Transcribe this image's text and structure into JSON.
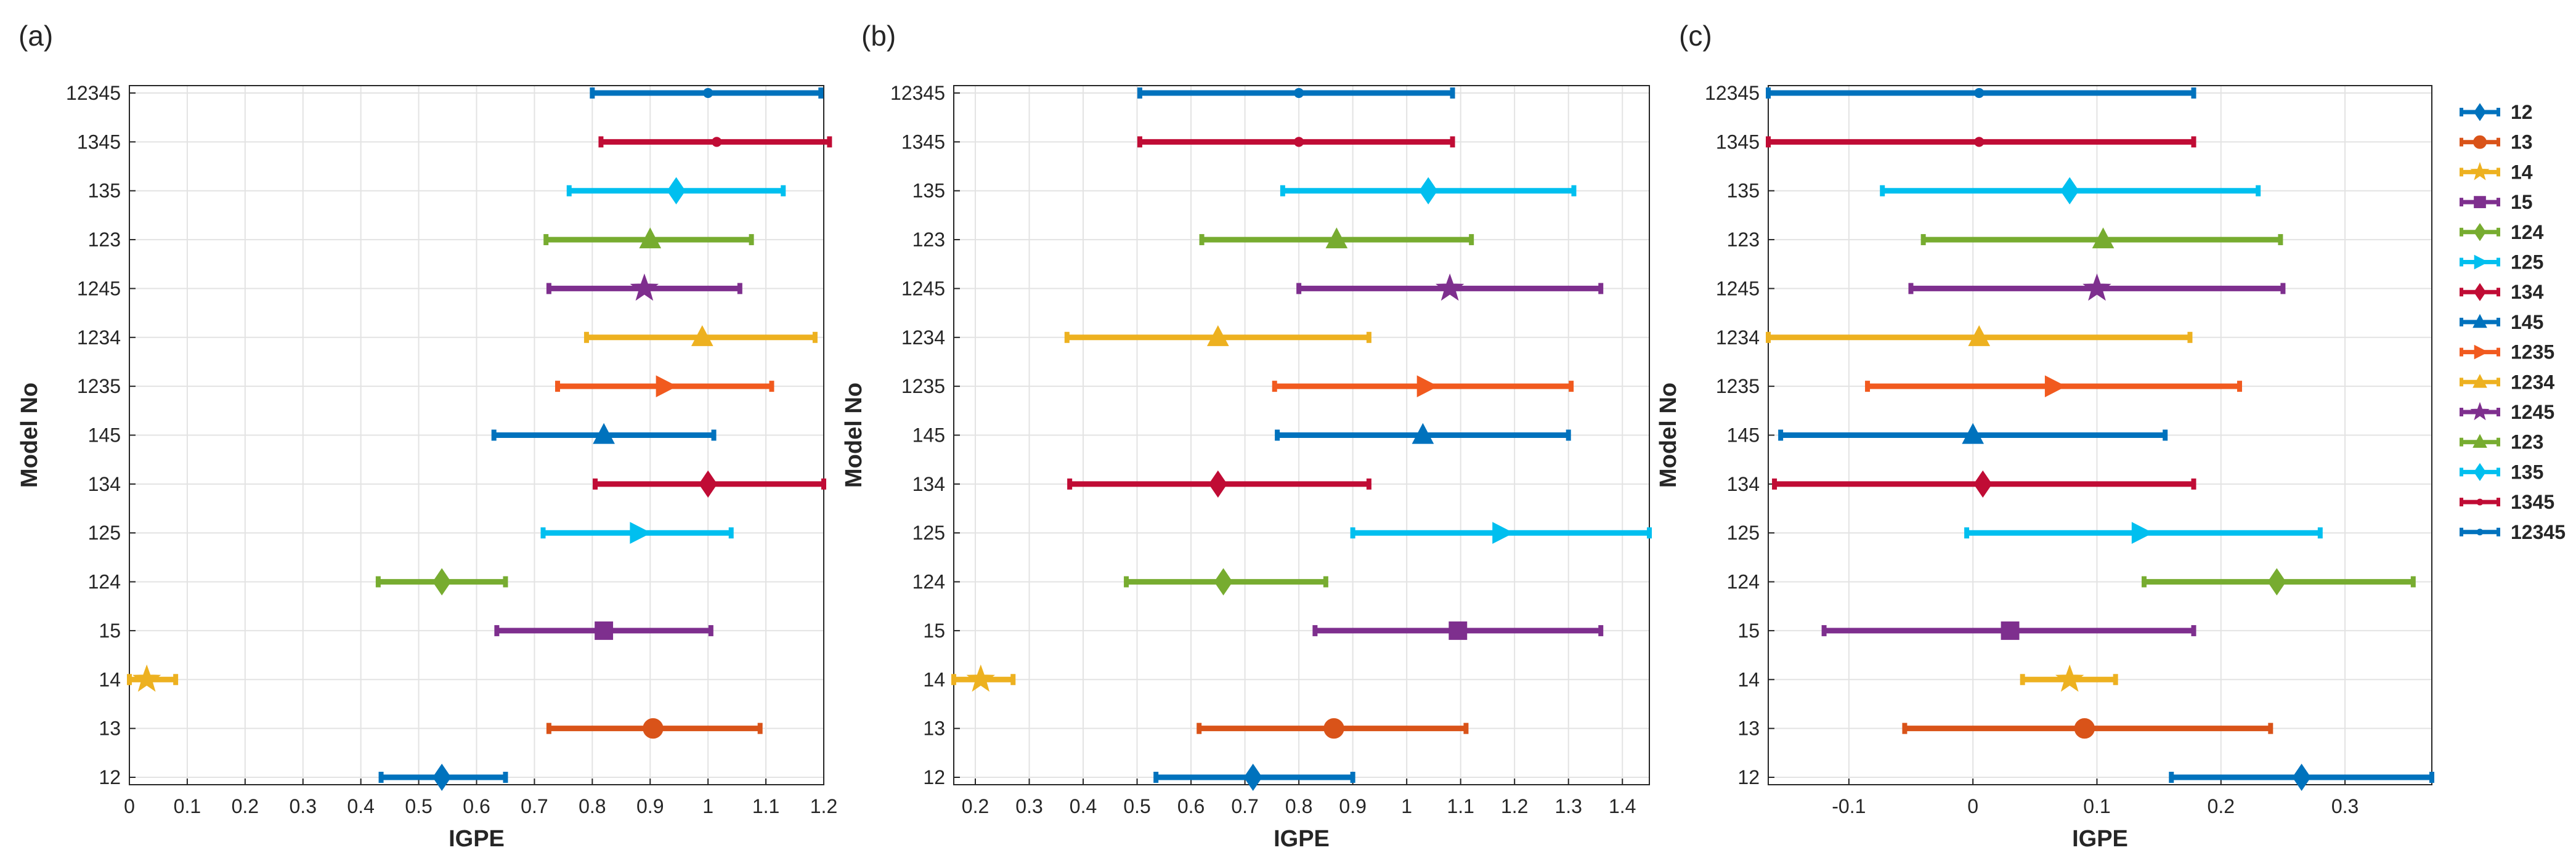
{
  "chart_data": [
    {
      "type": "errorbar",
      "panel_label": "(a)",
      "xlabel": "IGPE",
      "ylabel": "Model No",
      "xlim": [
        0,
        1.2
      ],
      "xticks": [
        0,
        0.1,
        0.2,
        0.3,
        0.4,
        0.5,
        0.6,
        0.7,
        0.8,
        0.9,
        1,
        1.1,
        1.2
      ],
      "xtick_labels": [
        "0",
        "0.1",
        "0.2",
        "0.3",
        "0.4",
        "0.5",
        "0.6",
        "0.7",
        "0.8",
        "0.9",
        "1",
        "1.1",
        "1.2"
      ],
      "grid": true,
      "series": [
        {
          "name": "12",
          "mean": 0.54,
          "low": 0.435,
          "high": 0.65
        },
        {
          "name": "13",
          "mean": 0.905,
          "low": 0.725,
          "high": 1.09
        },
        {
          "name": "14",
          "mean": 0.03,
          "low": 0.0,
          "high": 0.08
        },
        {
          "name": "15",
          "mean": 0.82,
          "low": 0.635,
          "high": 1.005
        },
        {
          "name": "124",
          "mean": 0.54,
          "low": 0.43,
          "high": 0.65
        },
        {
          "name": "125",
          "mean": 0.88,
          "low": 0.715,
          "high": 1.04
        },
        {
          "name": "134",
          "mean": 1.0,
          "low": 0.805,
          "high": 1.2
        },
        {
          "name": "145",
          "mean": 0.82,
          "low": 0.63,
          "high": 1.01
        },
        {
          "name": "1235",
          "mean": 0.925,
          "low": 0.74,
          "high": 1.11
        },
        {
          "name": "1234",
          "mean": 0.99,
          "low": 0.79,
          "high": 1.185
        },
        {
          "name": "1245",
          "mean": 0.89,
          "low": 0.725,
          "high": 1.055
        },
        {
          "name": "123",
          "mean": 0.9,
          "low": 0.72,
          "high": 1.075
        },
        {
          "name": "135",
          "mean": 0.945,
          "low": 0.76,
          "high": 1.13
        },
        {
          "name": "1345",
          "mean": 1.015,
          "low": 0.815,
          "high": 1.21
        },
        {
          "name": "12345",
          "mean": 1.0,
          "low": 0.8,
          "high": 1.195
        }
      ]
    },
    {
      "type": "errorbar",
      "panel_label": "(b)",
      "xlabel": "IGPE",
      "ylabel": "Model No",
      "xlim": [
        0.16,
        1.45
      ],
      "xticks": [
        0.2,
        0.3,
        0.4,
        0.5,
        0.6,
        0.7,
        0.8,
        0.9,
        1,
        1.1,
        1.2,
        1.3,
        1.4
      ],
      "xtick_labels": [
        "0.2",
        "0.3",
        "0.4",
        "0.5",
        "0.6",
        "0.7",
        "0.8",
        "0.9",
        "1",
        "1.1",
        "1.2",
        "1.3",
        "1.4"
      ],
      "grid": true,
      "series": [
        {
          "name": "12",
          "mean": 0.715,
          "low": 0.535,
          "high": 0.9
        },
        {
          "name": "13",
          "mean": 0.865,
          "low": 0.615,
          "high": 1.11
        },
        {
          "name": "14",
          "mean": 0.21,
          "low": 0.16,
          "high": 0.27
        },
        {
          "name": "15",
          "mean": 1.095,
          "low": 0.83,
          "high": 1.36
        },
        {
          "name": "124",
          "mean": 0.66,
          "low": 0.48,
          "high": 0.85
        },
        {
          "name": "125",
          "mean": 1.175,
          "low": 0.9,
          "high": 1.45
        },
        {
          "name": "134",
          "mean": 0.65,
          "low": 0.375,
          "high": 0.93
        },
        {
          "name": "145",
          "mean": 1.03,
          "low": 0.76,
          "high": 1.3
        },
        {
          "name": "1235",
          "mean": 1.035,
          "low": 0.755,
          "high": 1.305
        },
        {
          "name": "1234",
          "mean": 0.65,
          "low": 0.37,
          "high": 0.93
        },
        {
          "name": "1245",
          "mean": 1.08,
          "low": 0.8,
          "high": 1.36
        },
        {
          "name": "123",
          "mean": 0.87,
          "low": 0.62,
          "high": 1.12
        },
        {
          "name": "135",
          "mean": 1.04,
          "low": 0.77,
          "high": 1.31
        },
        {
          "name": "1345",
          "mean": 0.8,
          "low": 0.505,
          "high": 1.085
        },
        {
          "name": "12345",
          "mean": 0.8,
          "low": 0.505,
          "high": 1.085
        }
      ]
    },
    {
      "type": "errorbar",
      "panel_label": "(c)",
      "xlabel": "IGPE",
      "ylabel": "Model No",
      "xlim": [
        -0.165,
        0.37
      ],
      "xticks": [
        -0.1,
        0,
        0.1,
        0.2,
        0.3
      ],
      "xtick_labels": [
        "-0.1",
        "0",
        "0.1",
        "0.2",
        "0.3"
      ],
      "grid": true,
      "series": [
        {
          "name": "12",
          "mean": 0.265,
          "low": 0.16,
          "high": 0.37
        },
        {
          "name": "13",
          "mean": 0.09,
          "low": -0.055,
          "high": 0.24
        },
        {
          "name": "14",
          "mean": 0.078,
          "low": 0.04,
          "high": 0.115
        },
        {
          "name": "15",
          "mean": 0.03,
          "low": -0.12,
          "high": 0.178
        },
        {
          "name": "124",
          "mean": 0.245,
          "low": 0.138,
          "high": 0.355
        },
        {
          "name": "125",
          "mean": 0.135,
          "low": -0.005,
          "high": 0.28
        },
        {
          "name": "134",
          "mean": 0.008,
          "low": -0.16,
          "high": 0.178
        },
        {
          "name": "145",
          "mean": 0.0,
          "low": -0.155,
          "high": 0.155
        },
        {
          "name": "1235",
          "mean": 0.065,
          "low": -0.085,
          "high": 0.215
        },
        {
          "name": "1234",
          "mean": 0.005,
          "low": -0.165,
          "high": 0.175
        },
        {
          "name": "1245",
          "mean": 0.1,
          "low": -0.05,
          "high": 0.25
        },
        {
          "name": "123",
          "mean": 0.105,
          "low": -0.04,
          "high": 0.248
        },
        {
          "name": "135",
          "mean": 0.078,
          "low": -0.073,
          "high": 0.23
        },
        {
          "name": "1345",
          "mean": 0.005,
          "low": -0.165,
          "high": 0.178
        },
        {
          "name": "12345",
          "mean": 0.005,
          "low": -0.165,
          "high": 0.178
        }
      ]
    }
  ],
  "legend": {
    "placement": "right",
    "entries": [
      {
        "name": "12",
        "color": "#0072BD",
        "marker": "diamond"
      },
      {
        "name": "13",
        "color": "#D95319",
        "marker": "circle"
      },
      {
        "name": "14",
        "color": "#EDB120",
        "marker": "star"
      },
      {
        "name": "15",
        "color": "#7E2F8E",
        "marker": "square"
      },
      {
        "name": "124",
        "color": "#77AC30",
        "marker": "diamond"
      },
      {
        "name": "125",
        "color": "#00BFEF",
        "marker": "triangle-right"
      },
      {
        "name": "134",
        "color": "#C00C35",
        "marker": "diamond"
      },
      {
        "name": "145",
        "color": "#0072BD",
        "marker": "triangle-up"
      },
      {
        "name": "1235",
        "color": "#F15A1F",
        "marker": "triangle-right"
      },
      {
        "name": "1234",
        "color": "#EDB120",
        "marker": "triangle-up"
      },
      {
        "name": "1245",
        "color": "#7E2F8E",
        "marker": "star"
      },
      {
        "name": "123",
        "color": "#77AC30",
        "marker": "triangle-up"
      },
      {
        "name": "135",
        "color": "#00BFEF",
        "marker": "diamond"
      },
      {
        "name": "1345",
        "color": "#C00C35",
        "marker": "dot"
      },
      {
        "name": "12345",
        "color": "#0072BD",
        "marker": "dot"
      }
    ]
  }
}
